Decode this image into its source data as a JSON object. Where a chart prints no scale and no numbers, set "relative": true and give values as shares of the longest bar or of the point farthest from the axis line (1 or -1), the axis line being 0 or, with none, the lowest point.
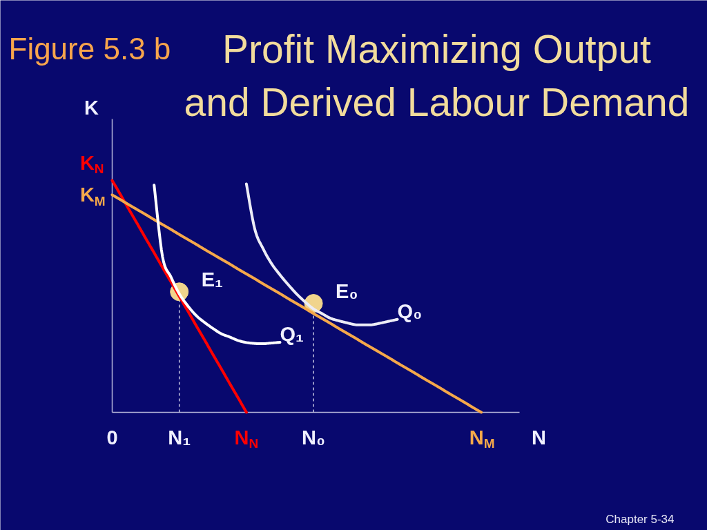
{
  "chart_data": {
    "type": "line",
    "title": "Profit Maximizing Output and Derived Labour Demand",
    "subtitle": "Figure 5.3 b",
    "xlabel": "N",
    "ylabel": "K",
    "relative": true,
    "categories": [
      "0",
      null,
      null,
      null,
      null,
      null,
      null,
      null,
      "N₁",
      null,
      null,
      null,
      null,
      null,
      null,
      null,
      "N$_{N}$",
      null,
      null,
      null,
      null,
      null,
      null,
      null,
      "N₀",
      null,
      null,
      null,
      null,
      null,
      null,
      null,
      null,
      null,
      null,
      null,
      null,
      null,
      null,
      null,
      null,
      null,
      null,
      null,
      "N$_{M}$"
    ],
    "annotations": [
      {
        "text": "K$_{N}$",
        "x": "0",
        "y": 1
      },
      {
        "text": "K$_{M}$",
        "x": "0",
        "y": 0.938
      },
      "Chapter 5-34"
    ],
    "series": [
      {
        "color": "#ff0000",
        "values": [
          1,
          0.938,
          0.875,
          0.813,
          0.75,
          0.688,
          0.625,
          0.563,
          0.5,
          0.438,
          0.375,
          0.313,
          0.25,
          0.188,
          0.125,
          0.063,
          0,
          null,
          null,
          null,
          null,
          null,
          null,
          null,
          null,
          null,
          null,
          null,
          null,
          null,
          null,
          null,
          null,
          null,
          null,
          null,
          null,
          null,
          null,
          null,
          null,
          null,
          null,
          null,
          null
        ]
      },
      {
        "color": "#f5a84a",
        "values": [
          0.938,
          0.917,
          0.895,
          0.874,
          0.853,
          0.831,
          0.81,
          0.789,
          0.767,
          0.746,
          0.725,
          0.703,
          0.682,
          0.661,
          0.64,
          0.618,
          0.597,
          0.576,
          0.554,
          0.533,
          0.512,
          0.49,
          0.469,
          0.448,
          0.426,
          0.405,
          0.384,
          0.362,
          0.341,
          0.32,
          0.298,
          0.277,
          0.256,
          0.235,
          0.213,
          0.192,
          0.171,
          0.149,
          0.128,
          0.107,
          0.085,
          0.064,
          0.043,
          0.021,
          0
        ]
      },
      {
        "name": "Q₁",
        "color": "#ffffff",
        "values": [
          null,
          null,
          null,
          null,
          null,
          0.98,
          0.671,
          0.584,
          0.511,
          0.46,
          0.418,
          0.388,
          0.362,
          0.339,
          0.325,
          0.31,
          0.301,
          0.297,
          0.296,
          0.299,
          0.302,
          null,
          null,
          null,
          null,
          null,
          null,
          null,
          null,
          null,
          null,
          null,
          null,
          null,
          null,
          null,
          null,
          null,
          null,
          null,
          null,
          null,
          null,
          null,
          null
        ]
      },
      {
        "name": "Q₀",
        "color": "#ececf6",
        "values": [
          null,
          null,
          null,
          null,
          null,
          null,
          null,
          null,
          null,
          null,
          null,
          null,
          null,
          null,
          null,
          null,
          0.985,
          0.79,
          0.705,
          0.641,
          0.593,
          0.55,
          0.51,
          0.476,
          0.446,
          0.426,
          0.406,
          0.395,
          0.386,
          0.378,
          0.377,
          0.378,
          0.385,
          0.393,
          0.401,
          null,
          null,
          null,
          null,
          null,
          null,
          null,
          null,
          null,
          null
        ]
      },
      {
        "name": "E₁",
        "type": "lollipop",
        "marker": "circle",
        "line_style": "dashed",
        "color": "#f0d48c",
        "values": [
          null,
          null,
          null,
          null,
          null,
          null,
          null,
          null,
          0.52,
          null,
          null,
          null,
          null,
          null,
          null,
          null,
          null,
          null,
          null,
          null,
          null,
          null,
          null,
          null,
          null,
          null,
          null,
          null,
          null,
          null,
          null,
          null,
          null,
          null,
          null,
          null,
          null,
          null,
          null,
          null,
          null,
          null,
          null,
          null,
          null
        ]
      },
      {
        "name": "E₀",
        "type": "lollipop",
        "marker": "circle",
        "line_style": "dashed",
        "color": "#f0d48c",
        "values": [
          null,
          null,
          null,
          null,
          null,
          null,
          null,
          null,
          null,
          null,
          null,
          null,
          null,
          null,
          null,
          null,
          null,
          null,
          null,
          null,
          null,
          null,
          null,
          null,
          0.47,
          null,
          null,
          null,
          null,
          null,
          null,
          null,
          null,
          null,
          null,
          null,
          null,
          null,
          null,
          null,
          null,
          null,
          null,
          null,
          null
        ]
      }
    ]
  }
}
